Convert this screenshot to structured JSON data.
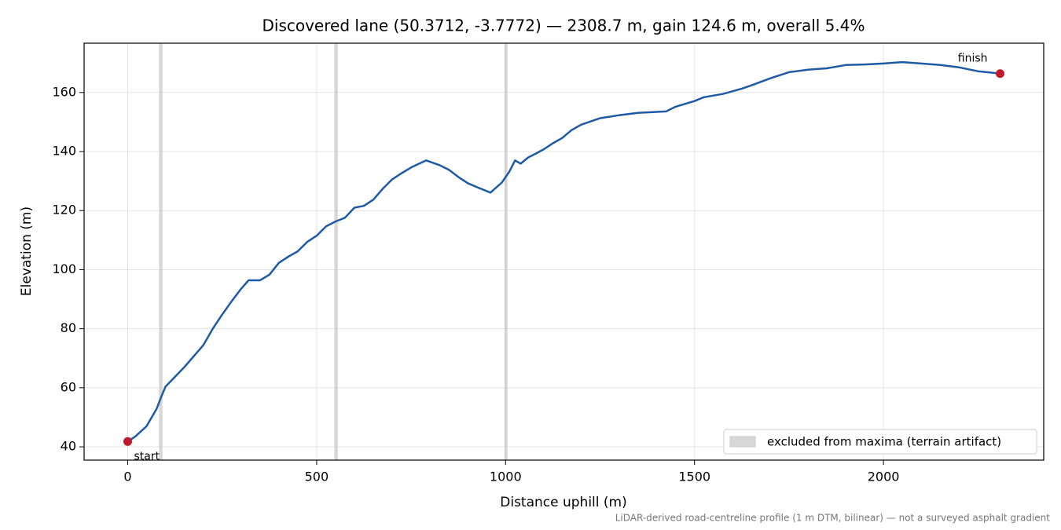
{
  "chart_data": {
    "type": "line",
    "title": "Discovered lane (50.3712, -3.7772) — 2308.7 m, gain 124.6 m, overall 5.4%",
    "xlabel": "Distance uphill (m)",
    "ylabel": "Elevation (m)",
    "footnote": "LiDAR-derived road-centreline profile (1 m DTM, bilinear) — not a surveyed asphalt gradient",
    "x": [
      0,
      20,
      50,
      77,
      88,
      100,
      150,
      200,
      225,
      250,
      275,
      300,
      320,
      350,
      375,
      400,
      425,
      450,
      475,
      500,
      525,
      550,
      575,
      600,
      625,
      650,
      675,
      700,
      725,
      750,
      790,
      825,
      850,
      875,
      900,
      925,
      960,
      990,
      1010,
      1025,
      1040,
      1060,
      1080,
      1100,
      1125,
      1150,
      1175,
      1200,
      1250,
      1300,
      1350,
      1425,
      1450,
      1500,
      1525,
      1575,
      1625,
      1650,
      1700,
      1750,
      1800,
      1850,
      1900,
      1950,
      2000,
      2050,
      2100,
      2150,
      2200,
      2250,
      2308.7
    ],
    "values": [
      41.8,
      43.5,
      47,
      53,
      56.7,
      60.4,
      67,
      74.4,
      80,
      84.8,
      89.3,
      93.5,
      96.4,
      96.4,
      98.3,
      102.3,
      104.4,
      106.2,
      109.4,
      111.5,
      114.7,
      116.3,
      117.6,
      121,
      121.6,
      123.7,
      127.4,
      130.6,
      132.7,
      134.6,
      137,
      135.4,
      133.8,
      131.4,
      129.3,
      127.9,
      126.1,
      129.5,
      133.2,
      137,
      135.9,
      138,
      139.3,
      140.7,
      142.8,
      144.6,
      147.3,
      149.1,
      151.3,
      152.3,
      153.1,
      153.6,
      155.2,
      157.1,
      158.4,
      159.5,
      161.3,
      162.4,
      164.8,
      166.9,
      167.7,
      168.2,
      169.3,
      169.5,
      169.8,
      170.3,
      169.8,
      169.3,
      168.5,
      167.2,
      166.4
    ],
    "color": "#1f5aa6",
    "markers": [
      {
        "label": "start",
        "x": 0,
        "y": 41.8
      },
      {
        "label": "finish",
        "x": 2308.7,
        "y": 166.4
      }
    ],
    "marker_color": "#c0192b",
    "excluded": {
      "label": "excluded from maxima (terrain artifact)",
      "color": "#bdbdbd",
      "ranges": [
        [
          83,
          92
        ],
        [
          547,
          556
        ],
        [
          997,
          1005
        ]
      ]
    },
    "xlim": [
      -115.4,
      2424.1
    ],
    "ylim": [
      35.5,
      176.7
    ],
    "xticks": [
      0,
      500,
      1000,
      1500,
      2000
    ],
    "yticks": [
      40,
      60,
      80,
      100,
      120,
      140,
      160
    ],
    "grid": true,
    "legend_position": "lower right"
  }
}
